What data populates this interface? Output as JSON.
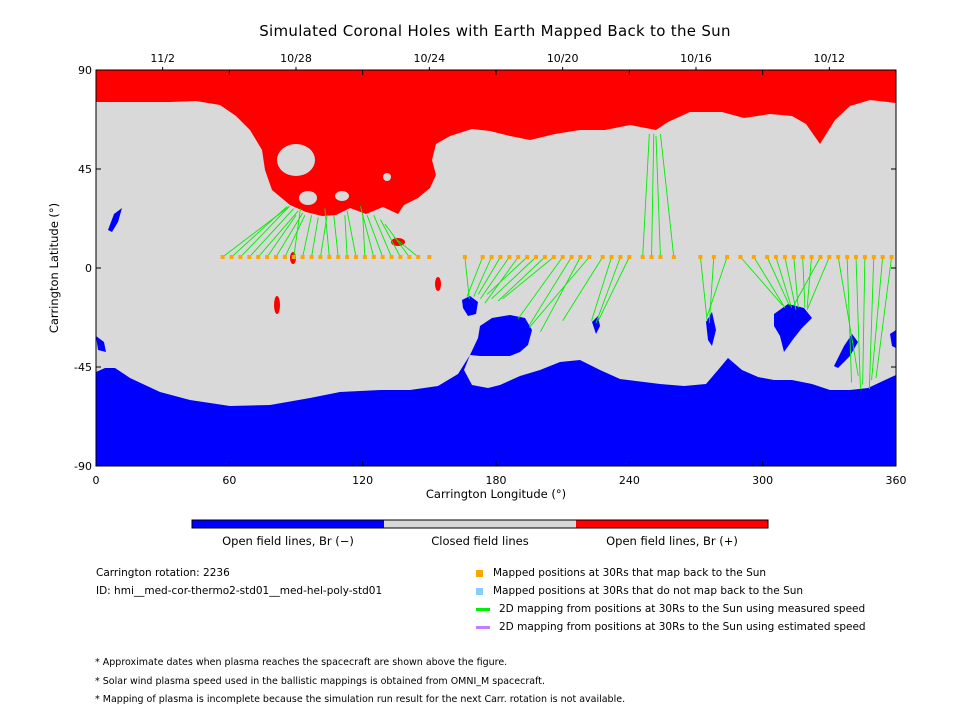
{
  "chart_data": {
    "type": "map",
    "title": "Simulated Coronal Holes with Earth Mapped Back to the Sun",
    "xlabel": "Carrington Longitude (°)",
    "ylabel": "Carrington Latitude (°)",
    "xlim": [
      0,
      360
    ],
    "ylim": [
      -90,
      90
    ],
    "xticks": [
      "0",
      "60",
      "120",
      "180",
      "240",
      "300",
      "360"
    ],
    "yticks": [
      "90",
      "45",
      "0",
      "-45",
      "-90"
    ],
    "date_axis": [
      {
        "label": "11/2",
        "lon": 30
      },
      {
        "label": "10/28",
        "lon": 90
      },
      {
        "label": "10/24",
        "lon": 150
      },
      {
        "label": "10/20",
        "lon": 210
      },
      {
        "label": "10/16",
        "lon": 270
      },
      {
        "label": "10/12",
        "lon": 330
      }
    ],
    "colorbar": [
      {
        "label": "Open field lines, Br (−)",
        "color": "#0000ff"
      },
      {
        "label": "Closed field lines",
        "color": "#d9d9d9"
      },
      {
        "label": "Open field lines, Br (+)",
        "color": "#ff0000"
      }
    ],
    "mapped_lat": 5,
    "mapped_points_lon": [
      57,
      61,
      65,
      69,
      73,
      77,
      81,
      85,
      89,
      93,
      97,
      101,
      105,
      109,
      113,
      117,
      121,
      125,
      129,
      133,
      137,
      141,
      145,
      150,
      166,
      174,
      178,
      182,
      186,
      190,
      194,
      198,
      202,
      206,
      210,
      214,
      218,
      222,
      228,
      232,
      236,
      240,
      246,
      250,
      254,
      260,
      272,
      278,
      284,
      290,
      296,
      302,
      306,
      310,
      314,
      318,
      322,
      326,
      330,
      334,
      338,
      342,
      346,
      350,
      354,
      358
    ],
    "connections": [
      [
        57,
        87,
        28
      ],
      [
        61,
        86,
        28
      ],
      [
        65,
        87,
        28
      ],
      [
        69,
        89,
        27
      ],
      [
        73,
        91,
        26
      ],
      [
        77,
        90,
        24
      ],
      [
        81,
        93,
        25
      ],
      [
        85,
        94,
        24
      ],
      [
        89,
        92,
        27
      ],
      [
        93,
        97,
        24
      ],
      [
        97,
        100,
        23
      ],
      [
        101,
        104,
        24
      ],
      [
        105,
        103,
        27
      ],
      [
        109,
        107,
        24
      ],
      [
        113,
        112,
        24
      ],
      [
        117,
        113,
        26
      ],
      [
        121,
        120,
        25
      ],
      [
        125,
        119,
        28
      ],
      [
        129,
        122,
        24
      ],
      [
        133,
        125,
        24
      ],
      [
        137,
        128,
        22
      ],
      [
        141,
        130,
        20
      ],
      [
        145,
        134,
        14
      ],
      [
        166,
        168,
        -14
      ],
      [
        174,
        167,
        -13
      ],
      [
        178,
        170,
        -13
      ],
      [
        182,
        172,
        -12
      ],
      [
        186,
        173,
        -14
      ],
      [
        190,
        175,
        -16
      ],
      [
        194,
        176,
        -12
      ],
      [
        198,
        178,
        -14
      ],
      [
        202,
        181,
        -15
      ],
      [
        206,
        183,
        -14
      ],
      [
        210,
        190,
        -23
      ],
      [
        214,
        195,
        -26
      ],
      [
        218,
        200,
        -29
      ],
      [
        222,
        195,
        -27
      ],
      [
        228,
        210,
        -24
      ],
      [
        232,
        223,
        -24
      ],
      [
        236,
        225,
        -25
      ],
      [
        240,
        226,
        -24
      ],
      [
        246,
        249,
        61
      ],
      [
        250,
        251,
        61
      ],
      [
        254,
        252,
        60
      ],
      [
        260,
        254,
        61
      ],
      [
        272,
        275,
        -24
      ],
      [
        278,
        276,
        -25
      ],
      [
        284,
        275,
        -22
      ],
      [
        290,
        309,
        -17
      ],
      [
        296,
        310,
        -18
      ],
      [
        302,
        312,
        -17
      ],
      [
        306,
        313,
        -18
      ],
      [
        310,
        315,
        -19
      ],
      [
        314,
        316,
        -18
      ],
      [
        318,
        319,
        -18
      ],
      [
        322,
        320,
        -18
      ],
      [
        326,
        314,
        -17
      ],
      [
        330,
        320,
        -19
      ],
      [
        334,
        343,
        -49
      ],
      [
        338,
        340,
        -52
      ],
      [
        342,
        344,
        -55
      ],
      [
        346,
        345,
        -53
      ],
      [
        350,
        348,
        -55
      ],
      [
        354,
        349,
        -51
      ],
      [
        358,
        351,
        -50
      ]
    ],
    "legend": [
      {
        "label": "Mapped positions at 30Rs that map back to the Sun",
        "color": "#ffa500",
        "kind": "square"
      },
      {
        "label": "Mapped positions at 30Rs that do not map back to the Sun",
        "color": "#87cefa",
        "kind": "square"
      },
      {
        "label": "2D mapping from positions at 30Rs to the Sun using measured speed",
        "color": "#00ee00",
        "kind": "line"
      },
      {
        "label": "2D mapping from positions at 30Rs to the Sun using estimated speed",
        "color": "#bf7fff",
        "kind": "line"
      }
    ]
  },
  "info": {
    "rotation": "Carrington rotation: 2236",
    "id": "ID: hmi__med-cor-thermo2-std01__med-hel-poly-std01"
  },
  "notes": [
    "* Approximate dates when plasma reaches the spacecraft are shown above the figure.",
    "* Solar wind plasma speed used in the ballistic mappings is obtained from OMNI_M spacecraft.",
    "* Mapping of plasma is incomplete because the simulation run result for the next Carr. rotation is not available."
  ],
  "colors": {
    "positive": "#ff0000",
    "negative": "#0000ff",
    "closed": "#d9d9d9",
    "mapped": "#ffa500",
    "mapping_line": "#00ee00"
  }
}
